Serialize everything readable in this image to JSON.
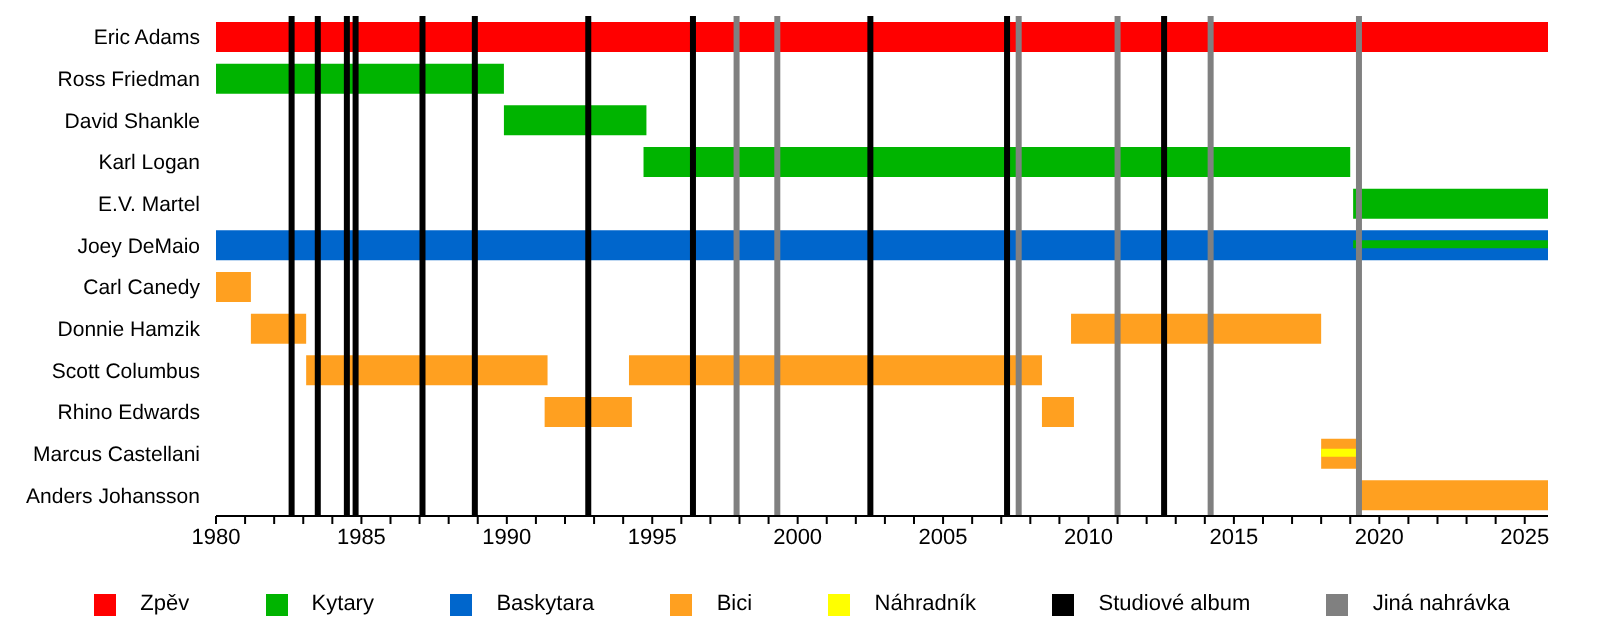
{
  "chart_data": {
    "type": "bar",
    "orientation": "horizontal",
    "categories": [
      "Eric Adams",
      "Ross Friedman",
      "David Shankle",
      "Karl Logan",
      "E.V. Martel",
      "Joey DeMaio",
      "Carl Canedy",
      "Donnie Hamzik",
      "Scott Columbus",
      "Rhino Edwards",
      "Marcus Castellani",
      "Anders Johansson"
    ],
    "series": [
      {
        "name": "Zpěv",
        "color": "#ff0000",
        "values": [
          45.8,
          null,
          null,
          null,
          null,
          null,
          null,
          null,
          null,
          null,
          null,
          null
        ],
        "base": [
          1980,
          null,
          null,
          null,
          null,
          null,
          null,
          null,
          null,
          null,
          null,
          null
        ]
      },
      {
        "name": "Kytary",
        "color": "#00b400",
        "values": [
          null,
          9.9,
          4.9,
          24.3,
          6.7,
          null,
          null,
          null,
          null,
          null,
          null,
          null
        ],
        "base": [
          null,
          1980,
          1989.9,
          1994.7,
          2019.1,
          null,
          null,
          null,
          null,
          null,
          null,
          null
        ]
      },
      {
        "name": "Baskytara",
        "color": "#0066cc",
        "values": [
          null,
          null,
          null,
          null,
          null,
          45.8,
          null,
          null,
          null,
          null,
          null,
          null
        ],
        "base": [
          null,
          null,
          null,
          null,
          null,
          1980,
          null,
          null,
          null,
          null,
          null,
          null
        ]
      },
      {
        "name": "Bici",
        "color": "#ffa020",
        "values": [
          null,
          null,
          null,
          null,
          null,
          null,
          1.2,
          1.9,
          8.3,
          3.0,
          1.4,
          6.5
        ],
        "base": [
          null,
          null,
          null,
          null,
          null,
          null,
          1980,
          1981.2,
          1983.1,
          1991.3,
          2018.0,
          2019.3
        ]
      },
      {
        "color": "#ffa020",
        "values": [
          null,
          null,
          null,
          null,
          null,
          null,
          null,
          8.6,
          14.2,
          1.1,
          null,
          null
        ],
        "base": [
          null,
          null,
          null,
          null,
          null,
          null,
          null,
          2009.4,
          1994.2,
          2008.4,
          null,
          null
        ]
      },
      {
        "color": "#00b400",
        "values": [
          null,
          null,
          null,
          null,
          null,
          6.7,
          null,
          null,
          null,
          null,
          null,
          null
        ],
        "base": [
          null,
          null,
          null,
          null,
          null,
          2019.1,
          null,
          null,
          null,
          null,
          null,
          null
        ]
      },
      {
        "name": "Náhradník",
        "color": "#ffff00",
        "values": [
          null,
          null,
          null,
          null,
          null,
          null,
          null,
          null,
          null,
          null,
          1.4,
          null
        ],
        "base": [
          null,
          null,
          null,
          null,
          null,
          null,
          null,
          null,
          null,
          null,
          2018.0,
          null
        ]
      }
    ],
    "ref_lines": [
      {
        "axis": "x",
        "value": 1982.6,
        "color": "#000000",
        "label": "Studiové album"
      },
      {
        "axis": "x",
        "value": 1983.5,
        "color": "#000000"
      },
      {
        "axis": "x",
        "value": 1984.5,
        "color": "#000000"
      },
      {
        "axis": "x",
        "value": 1984.8,
        "color": "#000000"
      },
      {
        "axis": "x",
        "value": 1987.1,
        "color": "#000000"
      },
      {
        "axis": "x",
        "value": 1988.9,
        "color": "#000000"
      },
      {
        "axis": "x",
        "value": 1992.8,
        "color": "#000000"
      },
      {
        "axis": "x",
        "value": 1996.4,
        "color": "#000000"
      },
      {
        "axis": "x",
        "value": 2002.5,
        "color": "#000000"
      },
      {
        "axis": "x",
        "value": 2007.2,
        "color": "#000000"
      },
      {
        "axis": "x",
        "value": 2012.6,
        "color": "#000000"
      },
      {
        "axis": "x",
        "value": 1997.9,
        "color": "#808080",
        "label": "Jiná nahrávka"
      },
      {
        "axis": "x",
        "value": 1999.3,
        "color": "#808080"
      },
      {
        "axis": "x",
        "value": 2007.6,
        "color": "#808080"
      },
      {
        "axis": "x",
        "value": 2011.0,
        "color": "#808080"
      },
      {
        "axis": "x",
        "value": 2014.2,
        "color": "#808080"
      },
      {
        "axis": "x",
        "value": 2019.3,
        "color": "#808080"
      }
    ],
    "xlim": [
      1980,
      2025.8
    ],
    "xticks": [
      1980,
      {
        "value": 1981,
        "label": null
      },
      {
        "value": 1982,
        "label": null
      },
      {
        "value": 1983,
        "label": null
      },
      {
        "value": 1984,
        "label": null
      },
      1985,
      {
        "value": 1986,
        "label": null
      },
      {
        "value": 1987,
        "label": null
      },
      {
        "value": 1988,
        "label": null
      },
      {
        "value": 1989,
        "label": null
      },
      1990,
      {
        "value": 1991,
        "label": null
      },
      {
        "value": 1992,
        "label": null
      },
      {
        "value": 1993,
        "label": null
      },
      {
        "value": 1994,
        "label": null
      },
      1995,
      {
        "value": 1996,
        "label": null
      },
      {
        "value": 1997,
        "label": null
      },
      {
        "value": 1998,
        "label": null
      },
      {
        "value": 1999,
        "label": null
      },
      2000,
      {
        "value": 2001,
        "label": null
      },
      {
        "value": 2002,
        "label": null
      },
      {
        "value": 2003,
        "label": null
      },
      {
        "value": 2004,
        "label": null
      },
      2005,
      {
        "value": 2006,
        "label": null
      },
      {
        "value": 2007,
        "label": null
      },
      {
        "value": 2008,
        "label": null
      },
      {
        "value": 2009,
        "label": null
      },
      2010,
      {
        "value": 2011,
        "label": null
      },
      {
        "value": 2012,
        "label": null
      },
      {
        "value": 2013,
        "label": null
      },
      {
        "value": 2014,
        "label": null
      },
      2015,
      {
        "value": 2016,
        "label": null
      },
      {
        "value": 2017,
        "label": null
      },
      {
        "value": 2018,
        "label": null
      },
      {
        "value": 2019,
        "label": null
      },
      2020,
      {
        "value": 2021,
        "label": null
      },
      {
        "value": 2022,
        "label": null
      },
      {
        "value": 2023,
        "label": null
      },
      {
        "value": 2024,
        "label": null
      },
      2025
    ],
    "legend": "bottom"
  }
}
